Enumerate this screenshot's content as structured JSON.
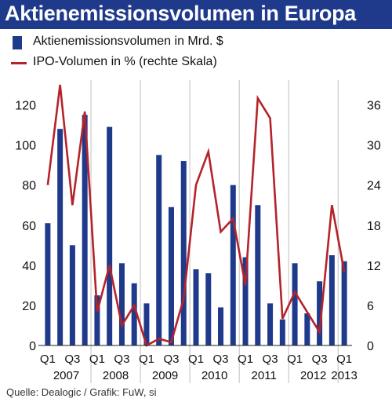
{
  "title": "Aktienemissionsvolumen in Europa",
  "legend": {
    "bars_label": "Aktienemissionsvolumen in Mrd. $",
    "line_label": "IPO-Volumen in % (rechte Skala)"
  },
  "source": "Quelle: Dealogic / Grafik: FuW, si",
  "colors": {
    "title_bg": "#1f3a8a",
    "bars": "#1f3a8a",
    "line": "#b5232a"
  },
  "chart_data": {
    "type": "bar",
    "categories": [
      "Q1 2007",
      "Q2 2007",
      "Q3 2007",
      "Q4 2007",
      "Q1 2008",
      "Q2 2008",
      "Q3 2008",
      "Q4 2008",
      "Q1 2009",
      "Q2 2009",
      "Q3 2009",
      "Q4 2009",
      "Q1 2010",
      "Q2 2010",
      "Q3 2010",
      "Q4 2010",
      "Q1 2011",
      "Q2 2011",
      "Q3 2011",
      "Q4 2011",
      "Q1 2012",
      "Q2 2012",
      "Q3 2012",
      "Q4 2012",
      "Q1 2013"
    ],
    "x_tick_labels": [
      "Q1",
      "Q3",
      "Q1",
      "Q3",
      "Q1",
      "Q3",
      "Q1",
      "Q3",
      "Q1",
      "Q3",
      "Q1",
      "Q3",
      "Q1"
    ],
    "year_labels": [
      "2007",
      "2008",
      "2009",
      "2010",
      "2011",
      "2012",
      "2013"
    ],
    "series": [
      {
        "name": "Aktienemissionsvolumen in Mrd. $",
        "type": "bar",
        "axis": "left",
        "values": [
          61,
          108,
          50,
          115,
          25,
          109,
          41,
          31,
          21,
          95,
          69,
          92,
          38,
          36,
          19,
          80,
          44,
          70,
          21,
          13,
          41,
          16,
          32,
          45,
          42
        ]
      },
      {
        "name": "IPO-Volumen in % (rechte Skala)",
        "type": "line",
        "axis": "right",
        "values": [
          24,
          39,
          21,
          35,
          5,
          12,
          3,
          6,
          0,
          1,
          0.5,
          7,
          24,
          29,
          17,
          19,
          9,
          37,
          34,
          4,
          8,
          5,
          2,
          21,
          11
        ]
      }
    ],
    "y_left": {
      "ylim": [
        0,
        130
      ],
      "ticks": [
        0,
        20,
        40,
        60,
        80,
        100,
        120
      ]
    },
    "y_right": {
      "ylim": [
        0,
        39
      ],
      "ticks": [
        0,
        6,
        12,
        18,
        24,
        30,
        36
      ]
    },
    "grid": "vertical year separators"
  }
}
